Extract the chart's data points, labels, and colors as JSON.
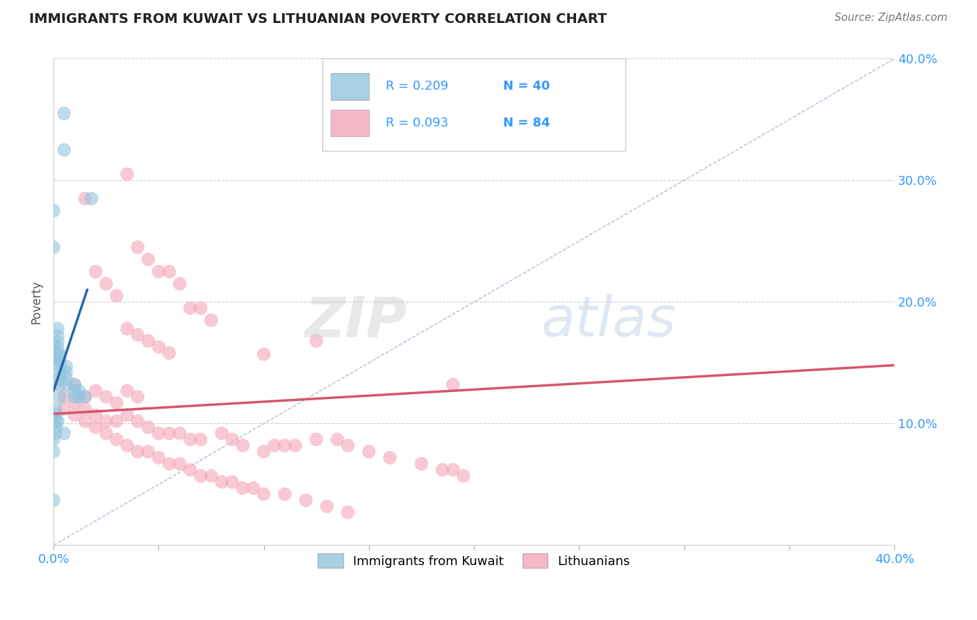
{
  "title": "IMMIGRANTS FROM KUWAIT VS LITHUANIAN POVERTY CORRELATION CHART",
  "source": "Source: ZipAtlas.com",
  "ylabel": "Poverty",
  "xlim": [
    0.0,
    0.4
  ],
  "ylim": [
    0.0,
    0.4
  ],
  "xticks": [
    0.0,
    0.05,
    0.1,
    0.15,
    0.2,
    0.25,
    0.3,
    0.35,
    0.4
  ],
  "yticks": [
    0.1,
    0.2,
    0.3,
    0.4
  ],
  "ytick_labels_right": [
    "10.0%",
    "20.0%",
    "30.0%",
    "40.0%"
  ],
  "grid_color": "#cccccc",
  "background_color": "#ffffff",
  "legend_label1": "Immigrants from Kuwait",
  "legend_label2": "Lithuanians",
  "blue_color": "#92c5de",
  "blue_line_color": "#2166ac",
  "pink_color": "#f4a6b8",
  "pink_line_color": "#d6546e",
  "ref_line_color": "#a0a8cc",
  "R_N_color": "#3399ff",
  "blue_scatter_x": [
    0.005,
    0.005,
    0.018,
    0.0,
    0.0,
    0.0,
    0.0,
    0.002,
    0.002,
    0.002,
    0.002,
    0.002,
    0.002,
    0.003,
    0.003,
    0.003,
    0.003,
    0.003,
    0.003,
    0.003,
    0.006,
    0.006,
    0.006,
    0.006,
    0.01,
    0.01,
    0.01,
    0.012,
    0.012,
    0.015,
    0.0,
    0.0,
    0.0,
    0.002,
    0.005,
    0.001,
    0.001,
    0.001,
    0.001,
    0.001
  ],
  "blue_scatter_y": [
    0.355,
    0.325,
    0.285,
    0.275,
    0.245,
    0.165,
    0.155,
    0.178,
    0.172,
    0.167,
    0.162,
    0.157,
    0.152,
    0.157,
    0.152,
    0.147,
    0.142,
    0.137,
    0.132,
    0.122,
    0.147,
    0.142,
    0.137,
    0.132,
    0.132,
    0.127,
    0.122,
    0.127,
    0.122,
    0.122,
    0.087,
    0.077,
    0.037,
    0.102,
    0.092,
    0.112,
    0.107,
    0.102,
    0.097,
    0.092
  ],
  "pink_scatter_x": [
    0.035,
    0.015,
    0.04,
    0.045,
    0.05,
    0.055,
    0.06,
    0.02,
    0.025,
    0.03,
    0.065,
    0.07,
    0.075,
    0.035,
    0.04,
    0.045,
    0.05,
    0.055,
    0.0,
    0.01,
    0.015,
    0.02,
    0.025,
    0.03,
    0.035,
    0.04,
    0.005,
    0.01,
    0.015,
    0.02,
    0.025,
    0.03,
    0.035,
    0.04,
    0.045,
    0.05,
    0.055,
    0.06,
    0.065,
    0.07,
    0.08,
    0.085,
    0.09,
    0.1,
    0.105,
    0.11,
    0.115,
    0.125,
    0.135,
    0.14,
    0.15,
    0.16,
    0.175,
    0.185,
    0.19,
    0.195,
    0.1,
    0.125,
    0.005,
    0.01,
    0.015,
    0.02,
    0.025,
    0.03,
    0.035,
    0.04,
    0.045,
    0.05,
    0.055,
    0.06,
    0.065,
    0.07,
    0.075,
    0.08,
    0.085,
    0.09,
    0.095,
    0.1,
    0.11,
    0.12,
    0.13,
    0.14,
    0.19
  ],
  "pink_scatter_y": [
    0.305,
    0.285,
    0.245,
    0.235,
    0.225,
    0.225,
    0.215,
    0.225,
    0.215,
    0.205,
    0.195,
    0.195,
    0.185,
    0.178,
    0.173,
    0.168,
    0.163,
    0.158,
    0.132,
    0.132,
    0.122,
    0.127,
    0.122,
    0.117,
    0.127,
    0.122,
    0.122,
    0.117,
    0.112,
    0.107,
    0.102,
    0.102,
    0.107,
    0.102,
    0.097,
    0.092,
    0.092,
    0.092,
    0.087,
    0.087,
    0.092,
    0.087,
    0.082,
    0.077,
    0.082,
    0.082,
    0.082,
    0.087,
    0.087,
    0.082,
    0.077,
    0.072,
    0.067,
    0.062,
    0.062,
    0.057,
    0.157,
    0.168,
    0.112,
    0.107,
    0.102,
    0.097,
    0.092,
    0.087,
    0.082,
    0.077,
    0.077,
    0.072,
    0.067,
    0.067,
    0.062,
    0.057,
    0.057,
    0.052,
    0.052,
    0.047,
    0.047,
    0.042,
    0.042,
    0.037,
    0.032,
    0.027,
    0.132
  ],
  "blue_trend_x": [
    0.0,
    0.016
  ],
  "blue_trend_y": [
    0.127,
    0.21
  ],
  "pink_trend_x": [
    0.0,
    0.4
  ],
  "pink_trend_y": [
    0.108,
    0.148
  ],
  "ref_line_x": [
    0.0,
    0.4
  ],
  "ref_line_y": [
    0.0,
    0.4
  ]
}
